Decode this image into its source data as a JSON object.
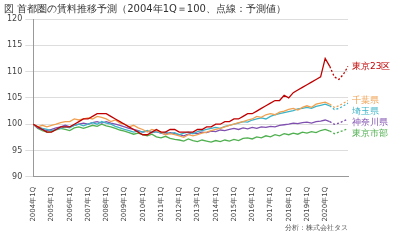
{
  "chart_data": {
    "type": "line",
    "title": "図 首都圏の賃料推移予測（2004年1Q＝100、点線：予測値）",
    "source": "分析：株式会社タス",
    "categories": [
      "2004年1Q",
      null,
      null,
      null,
      "2005年1Q",
      null,
      null,
      null,
      "2006年1Q",
      null,
      null,
      null,
      "2007年1Q",
      null,
      null,
      null,
      "2008年1Q",
      null,
      null,
      null,
      "2009年1Q",
      null,
      null,
      null,
      "2010年1Q",
      null,
      null,
      null,
      "2011年1Q",
      null,
      null,
      null,
      "2012年1Q",
      null,
      null,
      null,
      "2013年1Q",
      null,
      null,
      null,
      "2014年1Q",
      null,
      null,
      null,
      "2015年1Q",
      null,
      null,
      null,
      "2016年1Q",
      null,
      null,
      null,
      "2017年1Q",
      null,
      null,
      null,
      "2018年1Q",
      null,
      null,
      null,
      "2019年1Q",
      null,
      null,
      null,
      "2020年1Q",
      null,
      null,
      null,
      null,
      null
    ],
    "ylim": [
      90,
      120
    ],
    "yticks": [
      90,
      95,
      100,
      105,
      110,
      115,
      120
    ],
    "grid": true,
    "series": [
      {
        "name": "東京23区",
        "color": "#c00000",
        "values": [
          100,
          99.5,
          99,
          98.5,
          98.5,
          99,
          99.5,
          99.5,
          99.5,
          100,
          100.5,
          101,
          101,
          101.5,
          102,
          102,
          102,
          101.5,
          101,
          100.5,
          100,
          99.5,
          99,
          98.5,
          98,
          98,
          98.5,
          99,
          98.5,
          98.5,
          99,
          99,
          98.5,
          98.5,
          98.5,
          98.5,
          99,
          99,
          99.5,
          99.5,
          100,
          100,
          100.5,
          100.5,
          101,
          101,
          101.5,
          102,
          102,
          102.5,
          103,
          103.5,
          104,
          104.5,
          104.5,
          105.5,
          105,
          106,
          106.5,
          107,
          107.5,
          108,
          108.5,
          109,
          112.5,
          111,
          null,
          null,
          null,
          null
        ],
        "forecast": [
          null,
          null,
          null,
          null,
          null,
          null,
          null,
          null,
          null,
          null,
          null,
          null,
          null,
          null,
          null,
          null,
          null,
          null,
          null,
          null,
          null,
          null,
          null,
          null,
          null,
          null,
          null,
          null,
          null,
          null,
          null,
          null,
          null,
          null,
          null,
          null,
          null,
          null,
          null,
          null,
          null,
          null,
          null,
          null,
          null,
          null,
          null,
          null,
          null,
          null,
          null,
          null,
          null,
          null,
          null,
          null,
          null,
          null,
          null,
          null,
          null,
          null,
          null,
          null,
          null,
          111,
          109,
          108.5,
          109.5,
          111
        ]
      },
      {
        "name": "千葉県",
        "color": "#f0a050",
        "values": [
          100,
          99.5,
          99.8,
          99.5,
          99.8,
          100,
          100.3,
          100.5,
          100.5,
          101,
          100.8,
          101,
          101.2,
          101,
          101.5,
          101.3,
          101,
          100.5,
          100.8,
          100.2,
          100,
          99.5,
          99.8,
          99.3,
          99,
          98.5,
          99,
          98.8,
          98.5,
          98,
          98.2,
          98,
          97.8,
          97.5,
          98,
          97.8,
          98,
          98.3,
          98.5,
          98.8,
          99,
          99.2,
          99.5,
          99.8,
          100,
          100.3,
          100.5,
          100.8,
          101,
          101.5,
          101.3,
          101.8,
          102,
          101.8,
          102.3,
          102.5,
          102.8,
          103,
          102.7,
          103.2,
          103.5,
          103.2,
          103.8,
          104,
          104.2,
          103.8,
          null,
          null,
          null,
          null
        ],
        "forecast": [
          null,
          null,
          null,
          null,
          null,
          null,
          null,
          null,
          null,
          null,
          null,
          null,
          null,
          null,
          null,
          null,
          null,
          null,
          null,
          null,
          null,
          null,
          null,
          null,
          null,
          null,
          null,
          null,
          null,
          null,
          null,
          null,
          null,
          null,
          null,
          null,
          null,
          null,
          null,
          null,
          null,
          null,
          null,
          null,
          null,
          null,
          null,
          null,
          null,
          null,
          null,
          null,
          null,
          null,
          null,
          null,
          null,
          null,
          null,
          null,
          null,
          null,
          null,
          null,
          null,
          103.8,
          103.2,
          103.5,
          104,
          104.5
        ]
      },
      {
        "name": "埼玉県",
        "color": "#3cb4c8",
        "values": [
          100,
          99.5,
          99.2,
          99,
          98.8,
          99,
          99.2,
          99.5,
          99.3,
          99.8,
          100,
          99.7,
          100,
          100.3,
          100,
          100.5,
          100.2,
          100,
          99.6,
          99.3,
          99,
          98.8,
          98.5,
          98.7,
          98.5,
          98.8,
          98.4,
          98.6,
          98.3,
          98.5,
          98.2,
          98.4,
          98,
          98.3,
          98.5,
          98.2,
          98.6,
          98.8,
          99,
          99.2,
          99.4,
          99.2,
          99.6,
          99.8,
          100,
          100.2,
          100.5,
          100.4,
          100.8,
          101,
          101.2,
          101,
          101.5,
          101.8,
          102,
          102.2,
          102.4,
          102.6,
          102.9,
          103,
          103.2,
          103,
          103.4,
          103.6,
          103.8,
          103.5,
          null,
          null,
          null,
          null
        ],
        "forecast": [
          null,
          null,
          null,
          null,
          null,
          null,
          null,
          null,
          null,
          null,
          null,
          null,
          null,
          null,
          null,
          null,
          null,
          null,
          null,
          null,
          null,
          null,
          null,
          null,
          null,
          null,
          null,
          null,
          null,
          null,
          null,
          null,
          null,
          null,
          null,
          null,
          null,
          null,
          null,
          null,
          null,
          null,
          null,
          null,
          null,
          null,
          null,
          null,
          null,
          null,
          null,
          null,
          null,
          null,
          null,
          null,
          null,
          null,
          null,
          null,
          null,
          null,
          null,
          null,
          null,
          103.5,
          102.8,
          103,
          103.5,
          104
        ]
      },
      {
        "name": "神奈川県",
        "color": "#8050b0",
        "values": [
          100,
          99.3,
          99,
          98.8,
          99,
          99.3,
          99.5,
          99.8,
          99.5,
          99.8,
          100,
          100.2,
          100,
          100.3,
          100.5,
          100.2,
          100.5,
          100.2,
          100,
          99.8,
          99.5,
          99.2,
          99,
          98.8,
          98.5,
          98.7,
          98.4,
          98.6,
          98.3,
          98.1,
          98.4,
          98.2,
          98,
          97.8,
          98.1,
          98.3,
          98.2,
          98.5,
          98.4,
          98.7,
          98.6,
          98.9,
          98.8,
          99,
          99.2,
          99,
          99.3,
          99.1,
          99.4,
          99.2,
          99.5,
          99.4,
          99.6,
          99.5,
          99.8,
          99.9,
          100,
          100.2,
          100.1,
          100.3,
          100.4,
          100.2,
          100.5,
          100.6,
          100.8,
          100.5,
          null,
          null,
          null,
          null
        ],
        "forecast": [
          null,
          null,
          null,
          null,
          null,
          null,
          null,
          null,
          null,
          null,
          null,
          null,
          null,
          null,
          null,
          null,
          null,
          null,
          null,
          null,
          null,
          null,
          null,
          null,
          null,
          null,
          null,
          null,
          null,
          null,
          null,
          null,
          null,
          null,
          null,
          null,
          null,
          null,
          null,
          null,
          null,
          null,
          null,
          null,
          null,
          null,
          null,
          null,
          null,
          null,
          null,
          null,
          null,
          null,
          null,
          null,
          null,
          null,
          null,
          null,
          null,
          null,
          null,
          null,
          null,
          100.5,
          100,
          100.2,
          100.6,
          101
        ]
      },
      {
        "name": "東京市部",
        "color": "#50b050",
        "values": [
          100,
          99.2,
          98.8,
          98.5,
          98.6,
          98.9,
          99.2,
          99,
          98.8,
          99.3,
          99.5,
          99.2,
          99.5,
          99.8,
          99.6,
          100,
          99.7,
          99.5,
          99.2,
          98.9,
          98.7,
          98.4,
          98.1,
          98.3,
          98,
          97.8,
          98.1,
          97.6,
          97.4,
          97.7,
          97.3,
          97.1,
          97,
          96.8,
          97.2,
          96.9,
          96.7,
          97,
          96.8,
          96.6,
          96.9,
          96.7,
          97,
          96.8,
          97.1,
          96.9,
          97.3,
          97.4,
          97.2,
          97.6,
          97.4,
          97.8,
          97.6,
          98,
          97.8,
          98.2,
          98,
          98.3,
          98.1,
          98.5,
          98.3,
          98.6,
          98.4,
          98.8,
          99,
          98.7,
          null,
          null,
          null,
          null
        ],
        "forecast": [
          null,
          null,
          null,
          null,
          null,
          null,
          null,
          null,
          null,
          null,
          null,
          null,
          null,
          null,
          null,
          null,
          null,
          null,
          null,
          null,
          null,
          null,
          null,
          null,
          null,
          null,
          null,
          null,
          null,
          null,
          null,
          null,
          null,
          null,
          null,
          null,
          null,
          null,
          null,
          null,
          null,
          null,
          null,
          null,
          null,
          null,
          null,
          null,
          null,
          null,
          null,
          null,
          null,
          null,
          null,
          null,
          null,
          null,
          null,
          null,
          null,
          null,
          null,
          null,
          null,
          98.7,
          98.2,
          98.5,
          98.8,
          99.2
        ]
      }
    ]
  }
}
